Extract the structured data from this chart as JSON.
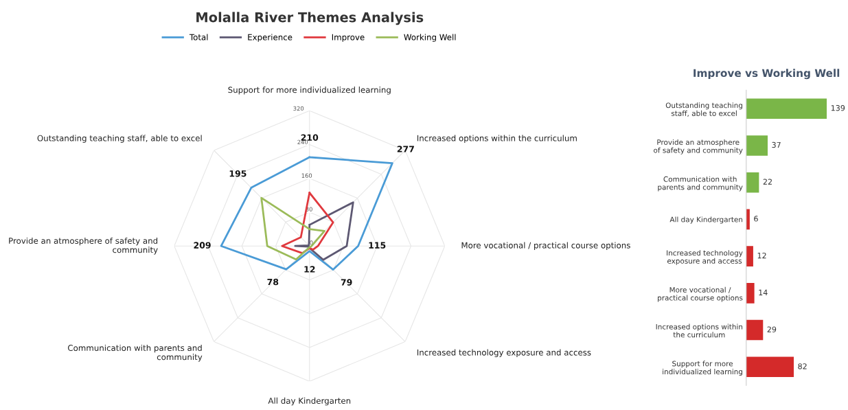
{
  "chart_data": [
    {
      "type": "radar",
      "title": "Molalla River Themes Analysis",
      "categories": [
        "Support for more individualized learning",
        "Increased options within the curriculum",
        "More vocational / practical course options",
        "Increased technology exposure and access",
        "All day Kindergarten",
        "Communication with parents and\ncommunity",
        "Provide an atmosphere of safety and\ncommunity",
        "Outstanding teaching staff, able to excel"
      ],
      "series": [
        {
          "name": "Total",
          "color": "#4a9bd6",
          "values": [
            210,
            277,
            115,
            79,
            12,
            78,
            209,
            195
          ],
          "value_labels": [
            "210",
            "277",
            "115",
            "79",
            "12",
            "78",
            "209",
            "195"
          ]
        },
        {
          "name": "Experience",
          "color": "#5d5872",
          "values": [
            50,
            146,
            88,
            46,
            5,
            2,
            34,
            2
          ]
        },
        {
          "name": "Improve",
          "color": "#e0393e",
          "values": [
            126,
            79,
            20,
            12,
            5,
            24,
            65,
            29
          ]
        },
        {
          "name": "Working Well",
          "color": "#9bbb59",
          "values": [
            40,
            50,
            5,
            3,
            3,
            45,
            100,
            161
          ]
        }
      ],
      "ylim": [
        0,
        320
      ],
      "yticks": [
        0,
        80,
        160,
        240,
        320
      ],
      "grid": true,
      "legend": "top"
    },
    {
      "type": "bar",
      "orientation": "horizontal",
      "title": "Improve vs Working Well",
      "categories": [
        "Outstanding teaching\nstaff, able to excel",
        "Provide an atmosphere\nof safety and community",
        "Communication with\nparents and community",
        "All day Kindergarten",
        "Increased technology\nexposure and access",
        "More vocational /\npractical course options",
        "Increased options within\nthe curriculum",
        "Support for more\nindividualized learning"
      ],
      "values": [
        139,
        37,
        22,
        6,
        12,
        14,
        29,
        82
      ],
      "colors": [
        "#7ab648",
        "#7ab648",
        "#7ab648",
        "#d42a2a",
        "#d42a2a",
        "#d42a2a",
        "#d42a2a",
        "#d42a2a"
      ],
      "data_labels": true,
      "tick_labels": "y"
    }
  ]
}
